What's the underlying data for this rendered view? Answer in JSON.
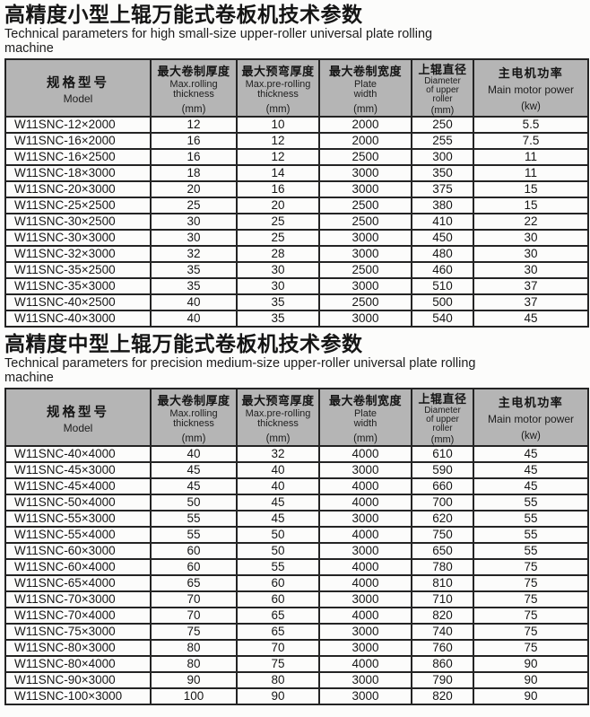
{
  "colors": {
    "header_bg": "#b5b5b5",
    "border": "#242424",
    "text": "#1a1a1a",
    "page_bg": "#fcfcfb"
  },
  "column_names": [
    "model",
    "max-rolling-thickness",
    "max-pre-rolling-thickness",
    "plate-width",
    "upper-roller-diameter",
    "main-motor-power"
  ],
  "sections": [
    {
      "title_zh": "高精度小型上辊万能式卷板机技术参数",
      "title_en": "Technical parameters for high small-size upper-roller universal plate rolling machine",
      "table": {
        "headers": [
          {
            "zh": "规格型号",
            "en": [
              "Model"
            ],
            "unit": ""
          },
          {
            "zh": "最大卷制厚度",
            "en": [
              "Max.rolling",
              "thickness"
            ],
            "unit": "(mm)"
          },
          {
            "zh": "最大预弯厚度",
            "en": [
              "Max.pre-rolling",
              "thickness"
            ],
            "unit": "(mm)"
          },
          {
            "zh": "最大卷制宽度",
            "en": [
              "Plate",
              "width"
            ],
            "unit": "(mm)"
          },
          {
            "zh": "上辊直径",
            "en": [
              "Diameter",
              "of upper",
              "roller"
            ],
            "unit": "(mm)"
          },
          {
            "zh": "主电机功率",
            "en": [
              "Main motor power"
            ],
            "unit": "(kw)"
          }
        ],
        "rows": [
          [
            "W11SNC-12×2000",
            "12",
            "10",
            "2000",
            "250",
            "5.5"
          ],
          [
            "W11SNC-16×2000",
            "16",
            "12",
            "2000",
            "255",
            "7.5"
          ],
          [
            "W11SNC-16×2500",
            "16",
            "12",
            "2500",
            "300",
            "11"
          ],
          [
            "W11SNC-18×3000",
            "18",
            "14",
            "3000",
            "350",
            "11"
          ],
          [
            "W11SNC-20×3000",
            "20",
            "16",
            "3000",
            "375",
            "15"
          ],
          [
            "W11SNC-25×2500",
            "25",
            "20",
            "2500",
            "380",
            "15"
          ],
          [
            "W11SNC-30×2500",
            "30",
            "25",
            "2500",
            "410",
            "22"
          ],
          [
            "W11SNC-30×3000",
            "30",
            "25",
            "3000",
            "450",
            "30"
          ],
          [
            "W11SNC-32×3000",
            "32",
            "28",
            "3000",
            "480",
            "30"
          ],
          [
            "W11SNC-35×2500",
            "35",
            "30",
            "2500",
            "460",
            "30"
          ],
          [
            "W11SNC-35×3000",
            "35",
            "30",
            "3000",
            "510",
            "37"
          ],
          [
            "W11SNC-40×2500",
            "40",
            "35",
            "2500",
            "500",
            "37"
          ],
          [
            "W11SNC-40×3000",
            "40",
            "35",
            "3000",
            "540",
            "45"
          ]
        ]
      }
    },
    {
      "title_zh": "高精度中型上辊万能式卷板机技术参数",
      "title_en": "Technical parameters for precision medium-size upper-roller universal plate rolling machine",
      "table": {
        "headers": [
          {
            "zh": "规格型号",
            "en": [
              "Model"
            ],
            "unit": ""
          },
          {
            "zh": "最大卷制厚度",
            "en": [
              "Max.rolling",
              "thickness"
            ],
            "unit": "(mm)"
          },
          {
            "zh": "最大预弯厚度",
            "en": [
              "Max.pre-rolling",
              "thickness"
            ],
            "unit": "(mm)"
          },
          {
            "zh": "最大卷制宽度",
            "en": [
              "Plate",
              "width"
            ],
            "unit": "(mm)"
          },
          {
            "zh": "上辊直径",
            "en": [
              "Diameter",
              "of upper",
              "roller"
            ],
            "unit": "(mm)"
          },
          {
            "zh": "主电机功率",
            "en": [
              "Main motor power"
            ],
            "unit": "(kw)"
          }
        ],
        "rows": [
          [
            "W11SNC-40×4000",
            "40",
            "32",
            "4000",
            "610",
            "45"
          ],
          [
            "W11SNC-45×3000",
            "45",
            "40",
            "3000",
            "590",
            "45"
          ],
          [
            "W11SNC-45×4000",
            "45",
            "40",
            "4000",
            "660",
            "45"
          ],
          [
            "W11SNC-50×4000",
            "50",
            "45",
            "4000",
            "700",
            "55"
          ],
          [
            "W11SNC-55×3000",
            "55",
            "45",
            "3000",
            "620",
            "55"
          ],
          [
            "W11SNC-55×4000",
            "55",
            "50",
            "4000",
            "750",
            "55"
          ],
          [
            "W11SNC-60×3000",
            "60",
            "50",
            "3000",
            "650",
            "55"
          ],
          [
            "W11SNC-60×4000",
            "60",
            "55",
            "4000",
            "780",
            "75"
          ],
          [
            "W11SNC-65×4000",
            "65",
            "60",
            "4000",
            "810",
            "75"
          ],
          [
            "W11SNC-70×3000",
            "70",
            "60",
            "3000",
            "710",
            "75"
          ],
          [
            "W11SNC-70×4000",
            "70",
            "65",
            "4000",
            "820",
            "75"
          ],
          [
            "W11SNC-75×3000",
            "75",
            "65",
            "3000",
            "740",
            "75"
          ],
          [
            "W11SNC-80×3000",
            "80",
            "70",
            "3000",
            "760",
            "75"
          ],
          [
            "W11SNC-80×4000",
            "80",
            "75",
            "4000",
            "860",
            "90"
          ],
          [
            "W11SNC-90×3000",
            "90",
            "80",
            "3000",
            "790",
            "90"
          ],
          [
            "W11SNC-100×3000",
            "100",
            "90",
            "3000",
            "820",
            "90"
          ]
        ]
      }
    }
  ]
}
